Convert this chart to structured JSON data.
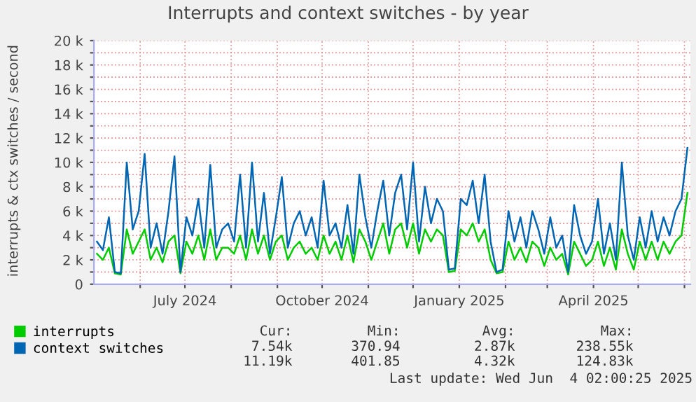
{
  "chart_data": {
    "type": "line",
    "title": "Interrupts and context switches - by year",
    "ylabel": "interrupts & ctx switches / second",
    "x": [
      "2024-05-03",
      "2024-05-07",
      "2024-05-11",
      "2024-05-15",
      "2024-05-19",
      "2024-05-23",
      "2024-05-27",
      "2024-05-31",
      "2024-06-04",
      "2024-06-08",
      "2024-06-12",
      "2024-06-16",
      "2024-06-20",
      "2024-06-24",
      "2024-06-28",
      "2024-07-02",
      "2024-07-06",
      "2024-07-10",
      "2024-07-14",
      "2024-07-18",
      "2024-07-22",
      "2024-07-26",
      "2024-07-30",
      "2024-08-03",
      "2024-08-07",
      "2024-08-11",
      "2024-08-15",
      "2024-08-19",
      "2024-08-23",
      "2024-08-27",
      "2024-08-31",
      "2024-09-04",
      "2024-09-08",
      "2024-09-12",
      "2024-09-16",
      "2024-09-20",
      "2024-09-24",
      "2024-09-28",
      "2024-10-02",
      "2024-10-06",
      "2024-10-10",
      "2024-10-14",
      "2024-10-18",
      "2024-10-22",
      "2024-10-26",
      "2024-10-30",
      "2024-11-03",
      "2024-11-07",
      "2024-11-11",
      "2024-11-15",
      "2024-11-19",
      "2024-11-23",
      "2024-11-27",
      "2024-12-01",
      "2024-12-05",
      "2024-12-09",
      "2024-12-13",
      "2024-12-17",
      "2024-12-21",
      "2024-12-25",
      "2024-12-29",
      "2025-01-02",
      "2025-01-06",
      "2025-01-10",
      "2025-01-14",
      "2025-01-18",
      "2025-01-22",
      "2025-01-26",
      "2025-01-30",
      "2025-02-03",
      "2025-02-07",
      "2025-02-11",
      "2025-02-15",
      "2025-02-19",
      "2025-02-23",
      "2025-02-27",
      "2025-03-03",
      "2025-03-07",
      "2025-03-11",
      "2025-03-15",
      "2025-03-19",
      "2025-03-23",
      "2025-03-27",
      "2025-03-31",
      "2025-04-04",
      "2025-04-08",
      "2025-04-12",
      "2025-04-16",
      "2025-04-20",
      "2025-04-24",
      "2025-04-28",
      "2025-05-02",
      "2025-05-06",
      "2025-05-10",
      "2025-05-14",
      "2025-05-18",
      "2025-05-22",
      "2025-05-26",
      "2025-05-30",
      "2025-06-03"
    ],
    "series": [
      {
        "name": "interrupts",
        "color": "#00cc00",
        "values": [
          2500,
          2000,
          3000,
          900,
          800,
          4500,
          2500,
          3500,
          4500,
          2000,
          3000,
          1800,
          3500,
          4000,
          900,
          3500,
          2500,
          4000,
          2000,
          4500,
          2000,
          3000,
          3000,
          2500,
          4000,
          2000,
          4500,
          2500,
          4000,
          2000,
          3500,
          4000,
          2000,
          3000,
          3500,
          2500,
          3000,
          2000,
          4000,
          2500,
          3500,
          2000,
          4000,
          1800,
          4500,
          3500,
          2000,
          3500,
          5000,
          2500,
          4500,
          5000,
          3000,
          5000,
          2500,
          4500,
          3500,
          4500,
          4000,
          1000,
          1100,
          4500,
          4000,
          5000,
          3500,
          4500,
          2000,
          900,
          1000,
          3500,
          2000,
          3000,
          1800,
          3500,
          3000,
          1500,
          3000,
          2000,
          2500,
          800,
          3500,
          2500,
          1500,
          2000,
          3500,
          1500,
          3000,
          1200,
          4500,
          2500,
          1200,
          3500,
          2000,
          3500,
          2000,
          3500,
          2500,
          3500,
          4000,
          7500
        ]
      },
      {
        "name": "context switches",
        "color": "#0066b3",
        "values": [
          3500,
          2800,
          5500,
          1000,
          900,
          10000,
          4500,
          6000,
          10700,
          3000,
          5000,
          2500,
          6000,
          10500,
          1000,
          5500,
          4000,
          7000,
          3000,
          9800,
          3000,
          4500,
          5000,
          3500,
          9000,
          3000,
          10000,
          3500,
          7500,
          2500,
          5500,
          8800,
          3000,
          5000,
          6000,
          4000,
          5500,
          3000,
          8500,
          4000,
          5000,
          3000,
          6500,
          2500,
          9000,
          5500,
          3000,
          6000,
          8500,
          4000,
          7500,
          9000,
          4500,
          10000,
          3500,
          8000,
          5000,
          7000,
          6000,
          1200,
          1300,
          7000,
          6500,
          8500,
          5000,
          9000,
          3500,
          1000,
          1200,
          6000,
          3500,
          5500,
          3000,
          6000,
          4500,
          2500,
          5500,
          3000,
          4000,
          1000,
          6500,
          4000,
          2500,
          3500,
          7000,
          2500,
          5000,
          2000,
          10000,
          4000,
          2000,
          5500,
          3000,
          6000,
          3500,
          5500,
          4000,
          6000,
          7000,
          11200
        ]
      }
    ],
    "xlim": [
      "2024-05-01",
      "2025-06-05"
    ],
    "xticks": [
      {
        "value": "2024-06-01",
        "label": null
      },
      {
        "value": "2024-07-01",
        "label": "July 2024"
      },
      {
        "value": "2024-08-01",
        "label": null
      },
      {
        "value": "2024-09-01",
        "label": null
      },
      {
        "value": "2024-10-01",
        "label": "October 2024"
      },
      {
        "value": "2024-11-01",
        "label": null
      },
      {
        "value": "2024-12-01",
        "label": null
      },
      {
        "value": "2025-01-01",
        "label": "January 2025"
      },
      {
        "value": "2025-02-01",
        "label": null
      },
      {
        "value": "2025-03-01",
        "label": null
      },
      {
        "value": "2025-04-01",
        "label": "April 2025"
      },
      {
        "value": "2025-05-01",
        "label": null
      },
      {
        "value": "2025-06-01",
        "label": null
      }
    ],
    "ylim": [
      0,
      20000
    ],
    "yticks": [
      0,
      {
        "value": 1000,
        "label": null
      },
      {
        "value": 2000,
        "label": "2 k"
      },
      {
        "value": 3000,
        "label": null
      },
      {
        "value": 4000,
        "label": "4 k"
      },
      {
        "value": 5000,
        "label": null
      },
      {
        "value": 6000,
        "label": "6 k"
      },
      {
        "value": 7000,
        "label": null
      },
      {
        "value": 8000,
        "label": "8 k"
      },
      {
        "value": 9000,
        "label": null
      },
      {
        "value": 10000,
        "label": "10 k"
      },
      {
        "value": 11000,
        "label": null
      },
      {
        "value": 12000,
        "label": "12 k"
      },
      {
        "value": 13000,
        "label": null
      },
      {
        "value": 14000,
        "label": "14 k"
      },
      {
        "value": 15000,
        "label": null
      },
      {
        "value": 16000,
        "label": "16 k"
      },
      {
        "value": 17000,
        "label": null
      },
      {
        "value": 18000,
        "label": "18 k"
      },
      {
        "value": 19000,
        "label": null
      },
      {
        "value": 20000,
        "label": "20 k"
      }
    ],
    "grid": true,
    "legend": "bottom",
    "line_style": "solid",
    "annotations": [
      "Cur:",
      "Min:",
      "Avg:",
      "Max:",
      "7.54k",
      "370.94",
      "2.87k",
      "238.55k",
      "11.19k",
      "401.85",
      "4.32k",
      "124.83k",
      "Last update: Wed Jun  4 02:00:25 2025"
    ]
  }
}
